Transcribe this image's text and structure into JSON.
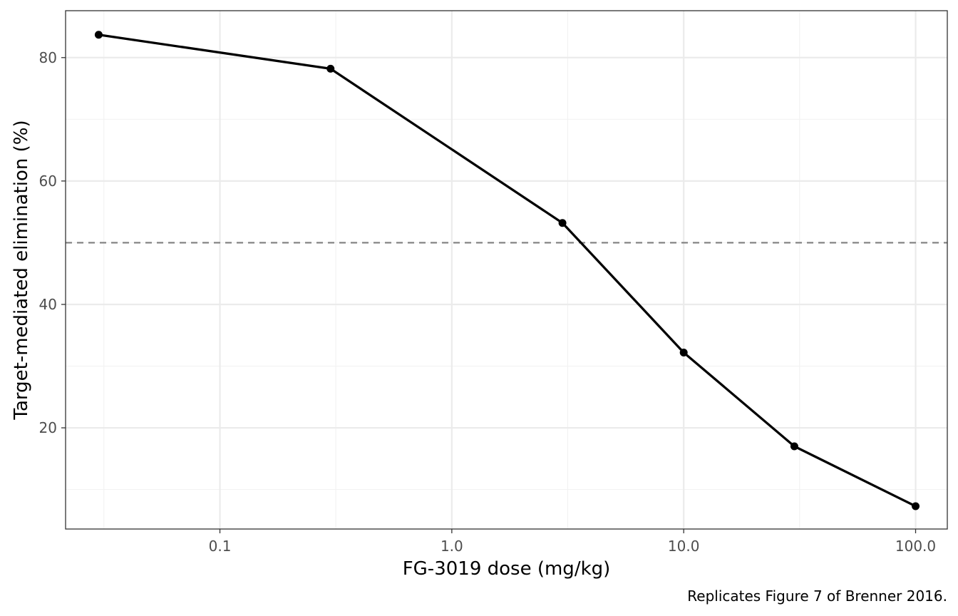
{
  "chart_data": {
    "type": "line",
    "title": "",
    "xlabel": "FG-3019 dose (mg/kg)",
    "ylabel": "Target-mediated elimination (%)",
    "caption": "Replicates Figure 7 of Brenner 2016.",
    "x_scale": "log10",
    "xlim": [
      0.0216,
      137
    ],
    "ylim": [
      3.6,
      87.6
    ],
    "x_ticks": [
      {
        "value": 0.1,
        "label": "0.1"
      },
      {
        "value": 1,
        "label": "1.0"
      },
      {
        "value": 10,
        "label": "10.0"
      },
      {
        "value": 100,
        "label": "100.0"
      }
    ],
    "x_minor_ticks": [
      0.0316,
      0.316,
      3.16,
      31.6
    ],
    "y_ticks": [
      {
        "value": 20,
        "label": "20"
      },
      {
        "value": 40,
        "label": "40"
      },
      {
        "value": 60,
        "label": "60"
      },
      {
        "value": 80,
        "label": "80"
      }
    ],
    "y_minor_ticks": [
      10,
      30,
      50,
      70
    ],
    "reference_line": {
      "y": 50,
      "style": "dashed",
      "color": "#7f7f7f"
    },
    "series": [
      {
        "x": [
          0.03,
          0.3,
          3,
          10,
          30,
          100
        ],
        "y": [
          83.7,
          78.2,
          53.2,
          32.2,
          17.0,
          7.3
        ],
        "color": "#000000"
      }
    ],
    "grid": true,
    "theme": "bw",
    "colors": {
      "background": "#ffffff",
      "grid_major": "#ebebeb",
      "grid_minor": "#f2f2f2",
      "border": "#333333",
      "line": "#000000",
      "tick_text": "#4d4d4d"
    }
  }
}
